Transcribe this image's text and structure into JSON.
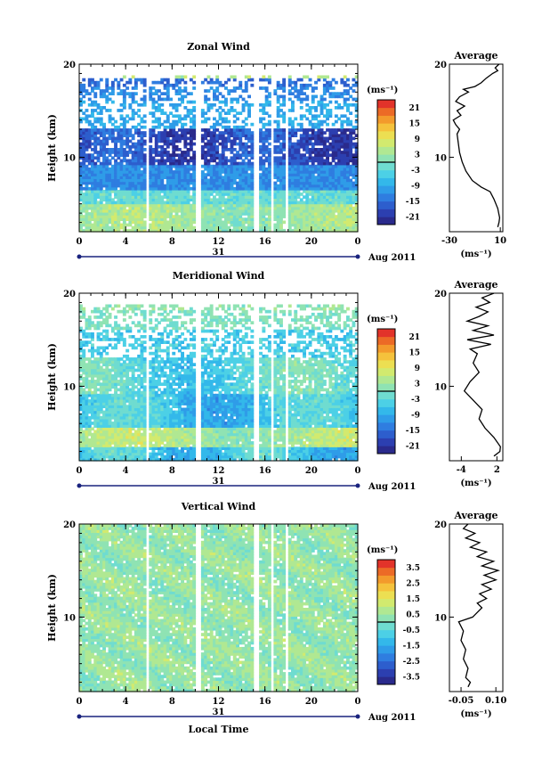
{
  "chart_data": [
    {
      "type": "heatmap",
      "title": "Zonal Wind",
      "ylabel": "Height (km)",
      "xlabel": "",
      "x_ticks": [
        "0",
        "4",
        "8",
        "12",
        "16",
        "20",
        "0"
      ],
      "xlim": [
        0,
        24
      ],
      "y_ticks": [
        "10",
        "20"
      ],
      "ylim": [
        2,
        20
      ],
      "date_label": "31",
      "month_label": "Aug 2011",
      "colorbar": {
        "unit": "(ms⁻¹)",
        "ticks": [
          "21",
          "15",
          "9",
          "3",
          "-3",
          "-9",
          "-15",
          "-21"
        ],
        "range": [
          -24,
          24
        ]
      },
      "profile": {
        "title": "Average",
        "xlabel": "(ms⁻¹)",
        "x_ticks": [
          "-30",
          "10"
        ],
        "xlim": [
          -30,
          12
        ],
        "y_ticks": [
          "10",
          "20"
        ],
        "ylim": [
          2,
          20
        ],
        "points": [
          [
            8,
            2.5
          ],
          [
            9,
            3
          ],
          [
            9.5,
            3.5
          ],
          [
            8,
            4.5
          ],
          [
            5,
            5.5
          ],
          [
            2,
            6.3
          ],
          [
            -5,
            6.8
          ],
          [
            -12,
            7.5
          ],
          [
            -17,
            8.5
          ],
          [
            -20,
            9.5
          ],
          [
            -22,
            10.5
          ],
          [
            -23,
            11.5
          ],
          [
            -24,
            12.5
          ],
          [
            -22,
            13
          ],
          [
            -25,
            13.5
          ],
          [
            -27,
            14
          ],
          [
            -21,
            14.5
          ],
          [
            -24,
            15
          ],
          [
            -18,
            15.5
          ],
          [
            -25,
            16
          ],
          [
            -22,
            16.5
          ],
          [
            -15,
            17
          ],
          [
            -19,
            17.3
          ],
          [
            -10,
            17.6
          ],
          [
            -5,
            18
          ],
          [
            -1,
            18.5
          ],
          [
            4,
            19
          ],
          [
            8,
            19.3
          ],
          [
            6,
            19.6
          ],
          [
            9,
            20
          ]
        ]
      }
    },
    {
      "type": "heatmap",
      "title": "Meridional Wind",
      "ylabel": "Height (km)",
      "xlabel": "",
      "x_ticks": [
        "0",
        "4",
        "8",
        "12",
        "16",
        "20",
        "0"
      ],
      "xlim": [
        0,
        24
      ],
      "y_ticks": [
        "10",
        "20"
      ],
      "ylim": [
        2,
        20
      ],
      "date_label": "31",
      "month_label": "Aug 2011",
      "colorbar": {
        "unit": "(ms⁻¹)",
        "ticks": [
          "21",
          "15",
          "9",
          "3",
          "-3",
          "-9",
          "-15",
          "-21"
        ],
        "range": [
          -24,
          24
        ]
      },
      "profile": {
        "title": "Average",
        "xlabel": "(ms⁻¹)",
        "x_ticks": [
          "-4",
          "2"
        ],
        "xlim": [
          -6,
          3
        ],
        "y_ticks": [
          "10",
          "20"
        ],
        "ylim": [
          2,
          20
        ],
        "points": [
          [
            1.5,
            2.5
          ],
          [
            2.5,
            3
          ],
          [
            2.6,
            3.5
          ],
          [
            1.5,
            4.5
          ],
          [
            0,
            5.5
          ],
          [
            -1,
            6.5
          ],
          [
            -0.5,
            7.5
          ],
          [
            -2,
            8.5
          ],
          [
            -3.5,
            9.5
          ],
          [
            -2.5,
            10.5
          ],
          [
            -1,
            11.5
          ],
          [
            -2,
            12.5
          ],
          [
            -1.3,
            13.5
          ],
          [
            -2.5,
            14
          ],
          [
            1,
            14.5
          ],
          [
            -3,
            15
          ],
          [
            1.5,
            15.5
          ],
          [
            -2,
            16
          ],
          [
            0.5,
            16.5
          ],
          [
            -3,
            17
          ],
          [
            -1,
            17.5
          ],
          [
            0.5,
            18
          ],
          [
            -1.5,
            18.5
          ],
          [
            0.8,
            19
          ],
          [
            -0.5,
            19.5
          ],
          [
            1.5,
            20
          ]
        ]
      }
    },
    {
      "type": "heatmap",
      "title": "Vertical Wind",
      "ylabel": "Height (km)",
      "xlabel": "Local Time",
      "x_ticks": [
        "0",
        "4",
        "8",
        "12",
        "16",
        "20",
        "0"
      ],
      "xlim": [
        0,
        24
      ],
      "y_ticks": [
        "10",
        "20"
      ],
      "ylim": [
        2,
        20
      ],
      "date_label": "31",
      "month_label": "Aug 2011",
      "colorbar": {
        "unit": "(ms⁻¹)",
        "ticks": [
          "3.5",
          "2.5",
          "1.5",
          "0.5",
          "-0.5",
          "-1.5",
          "-2.5",
          "-3.5"
        ],
        "range": [
          -4,
          4
        ]
      },
      "profile": {
        "title": "Average",
        "xlabel": "(ms⁻¹)",
        "x_ticks": [
          "-0.05",
          "0.10"
        ],
        "xlim": [
          -0.1,
          0.13
        ],
        "y_ticks": [
          "10",
          "20"
        ],
        "ylim": [
          2,
          20
        ],
        "points": [
          [
            -0.02,
            2.5
          ],
          [
            -0.01,
            3
          ],
          [
            -0.03,
            3.5
          ],
          [
            -0.02,
            4.5
          ],
          [
            -0.04,
            5.5
          ],
          [
            -0.03,
            6.5
          ],
          [
            -0.05,
            7.5
          ],
          [
            -0.04,
            8.5
          ],
          [
            -0.06,
            9.5
          ],
          [
            0.0,
            10
          ],
          [
            0.02,
            10.5
          ],
          [
            0.04,
            11
          ],
          [
            0.02,
            11.5
          ],
          [
            0.06,
            12
          ],
          [
            0.03,
            12.5
          ],
          [
            0.08,
            13
          ],
          [
            0.04,
            13.5
          ],
          [
            0.1,
            14
          ],
          [
            0.05,
            14.5
          ],
          [
            0.11,
            15
          ],
          [
            0.04,
            15.5
          ],
          [
            0.09,
            16
          ],
          [
            0.02,
            16.5
          ],
          [
            0.06,
            17
          ],
          [
            -0.01,
            17.5
          ],
          [
            0.03,
            18
          ],
          [
            -0.03,
            18.5
          ],
          [
            0.01,
            19
          ],
          [
            -0.04,
            19.5
          ],
          [
            -0.02,
            20
          ]
        ]
      }
    }
  ]
}
